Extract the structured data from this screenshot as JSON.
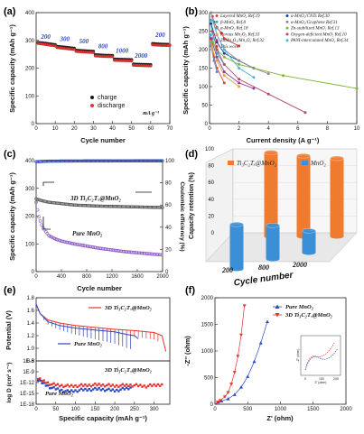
{
  "panels": {
    "a": {
      "label": "(a)",
      "xlabel": "Cycle number",
      "ylabel": "Specific capacity (mAh g⁻¹)",
      "xticks": [
        "0",
        "10",
        "20",
        "30",
        "40",
        "50",
        "60",
        "70"
      ],
      "yticks": [
        "0",
        "100",
        "200",
        "300",
        "400"
      ],
      "unit_note": "mA g⁻¹"
    },
    "b": {
      "label": "(b)",
      "xlabel": "Current density (A g⁻¹)",
      "ylabel": "Specific capacity (mAh g⁻¹)",
      "xticks": [
        "0",
        "2",
        "4",
        "6",
        "8",
        "10"
      ],
      "yticks": [
        "0",
        "50",
        "100",
        "150",
        "200",
        "250",
        "300"
      ]
    },
    "c": {
      "label": "(c)",
      "xlabel": "Cycle number",
      "ylabel": "Specific capacity (mAh g⁻¹)",
      "ylabel_right": "Coulombic efficiency (%)",
      "xticks": [
        "0",
        "400",
        "800",
        "1200",
        "1600",
        "2000"
      ],
      "yticks": [
        "0",
        "100",
        "200",
        "300",
        "400"
      ],
      "yticks_right": [
        "0",
        "20",
        "40",
        "60",
        "80",
        "100"
      ],
      "annotations": [
        "3D Ti₃C₂Tₓ@MnO₂",
        "Pure MnO₂"
      ]
    },
    "d": {
      "label": "(d)",
      "ylabel": "Capacity retention (%)",
      "xlabel": "Cycle number",
      "yticks": [
        "0",
        "20",
        "40",
        "60",
        "80",
        "100"
      ],
      "legend": [
        "Ti₃C₂Tₓ@MnO₂",
        "MnO₂"
      ]
    },
    "e": {
      "label": "(e)",
      "xlabel": "Specific capacity (mAh g⁻¹)",
      "ylabel_top": "Potential (V)",
      "ylabel_bottom": "log D (cm² s⁻¹)",
      "xticks": [
        "0",
        "50",
        "100",
        "150",
        "200",
        "250",
        "300"
      ],
      "yticks_top": [
        "0.8",
        "1.0",
        "1.2",
        "1.4",
        "1.6",
        "1.8"
      ],
      "yticks_bottom": [
        "1E-18",
        "1E-15",
        "1E-12",
        "1E-9",
        "1E-6"
      ],
      "legend": [
        "3D Ti₃C₂Tₓ@MnO₂",
        "Pure MnO₂"
      ],
      "note_bottom": [
        "3D Ti₃C₂Tₓ@MnO₂",
        "Pure MnO₂"
      ]
    },
    "f": {
      "label": "(f)",
      "xlabel": "Z' (ohm)",
      "ylabel": "-Z'' (ohm)",
      "xticks": [
        "0",
        "500",
        "1000",
        "1500",
        "2000"
      ],
      "yticks": [
        "0",
        "500",
        "1000",
        "1500",
        "2000"
      ],
      "legend": [
        "Pure MnO₂",
        "3D Ti₃C₂Tₓ@MnO₂"
      ],
      "inset_xlabel": "Z' (ohm)",
      "inset_ylabel": "-Z'' (ohm)",
      "inset_ticks": [
        "0",
        "100",
        "200"
      ]
    }
  },
  "colors": {
    "red": "#e8322e",
    "blue": "#2b48c4",
    "purple": "#8d59c9",
    "orange": "#ef7b2f",
    "bluebar": "#3a8fd6"
  },
  "chart_data": [
    {
      "panel": "a",
      "type": "scatter",
      "xlabel": "Cycle number",
      "ylabel": "Specific capacity (mAh g⁻¹)",
      "xlim": [
        0,
        70
      ],
      "ylim": [
        0,
        400
      ],
      "series": [
        {
          "name": "charge",
          "points": [
            [
              1,
              290
            ],
            [
              5,
              287
            ],
            [
              10,
              282
            ],
            [
              11,
              276
            ],
            [
              15,
              273
            ],
            [
              20,
              269
            ],
            [
              21,
              262
            ],
            [
              25,
              260
            ],
            [
              30,
              258
            ],
            [
              31,
              246
            ],
            [
              35,
              244
            ],
            [
              40,
              243
            ],
            [
              41,
              230
            ],
            [
              45,
              229
            ],
            [
              50,
              228
            ],
            [
              51,
              212
            ],
            [
              55,
              211
            ],
            [
              60,
              210
            ],
            [
              61,
              286
            ],
            [
              65,
              284
            ],
            [
              70,
              283
            ]
          ]
        },
        {
          "name": "discharge",
          "points": [
            [
              1,
              292
            ],
            [
              5,
              288
            ],
            [
              10,
              283
            ],
            [
              11,
              277
            ],
            [
              15,
              274
            ],
            [
              20,
              270
            ],
            [
              21,
              263
            ],
            [
              25,
              261
            ],
            [
              30,
              259
            ],
            [
              31,
              247
            ],
            [
              35,
              245
            ],
            [
              40,
              244
            ],
            [
              41,
              231
            ],
            [
              45,
              230
            ],
            [
              50,
              229
            ],
            [
              51,
              213
            ],
            [
              55,
              212
            ],
            [
              60,
              211
            ],
            [
              61,
              287
            ],
            [
              65,
              285
            ],
            [
              70,
              284
            ]
          ]
        }
      ],
      "labels": [
        {
          "x": 5,
          "y": 305,
          "text": "200"
        },
        {
          "x": 15,
          "y": 297,
          "text": "300"
        },
        {
          "x": 25,
          "y": 289,
          "text": "500"
        },
        {
          "x": 35,
          "y": 272,
          "text": "800"
        },
        {
          "x": 45,
          "y": 255,
          "text": "1000"
        },
        {
          "x": 55,
          "y": 237,
          "text": "2000"
        },
        {
          "x": 65,
          "y": 312,
          "text": "200"
        }
      ]
    },
    {
      "panel": "b",
      "type": "line",
      "xlabel": "Current density (A g⁻¹)",
      "ylabel": "Specific capacity (mAh g⁻¹)",
      "xlim": [
        0,
        10
      ],
      "ylim": [
        0,
        300
      ],
      "series": [
        {
          "name": "Layered MnO₂ Ref.19",
          "color": "#d9483b",
          "x": [
            0.1,
            0.3,
            0.5,
            1
          ],
          "y": [
            230,
            180,
            150,
            110
          ]
        },
        {
          "name": "β-MnO₂ Ref.8",
          "color": "#2bb0b8",
          "x": [
            0.1,
            0.2,
            0.5,
            1
          ],
          "y": [
            280,
            230,
            190,
            160
          ]
        },
        {
          "name": "α-MnO₂ Ref.18",
          "color": "#5a8fd8",
          "x": [
            0.05,
            0.1,
            0.3,
            0.5
          ],
          "y": [
            240,
            210,
            170,
            140
          ]
        },
        {
          "name": "Porous Mn₂O₃ Ref.33",
          "color": "#e9a43a",
          "x": [
            0.1,
            0.2,
            0.5,
            1,
            2
          ],
          "y": [
            225,
            200,
            170,
            130,
            100
          ]
        },
        {
          "name": "ZnMn₂O₄/Mn₂O₃ Ref.32",
          "color": "#8e3b9e",
          "x": [
            0.1,
            0.5,
            1,
            2,
            3
          ],
          "y": [
            230,
            180,
            140,
            110,
            95
          ]
        },
        {
          "name": "This work",
          "color": "#e8322e",
          "x": [
            0.2,
            0.3,
            0.5,
            0.8,
            1,
            2
          ],
          "y": [
            290,
            275,
            260,
            245,
            230,
            210
          ]
        },
        {
          "name": "α-MnO₂/CNTs Ref.30",
          "color": "#1c3f94",
          "x": [
            0.1,
            0.5,
            1,
            2,
            3
          ],
          "y": [
            270,
            220,
            190,
            170,
            150
          ]
        },
        {
          "name": "α-MnO₂/Graphene Ref.31",
          "color": "#8a8a8a",
          "x": [
            0.1,
            0.5,
            1,
            2,
            3,
            4
          ],
          "y": [
            300,
            240,
            200,
            170,
            150,
            135
          ]
        },
        {
          "name": "Zn-stabilized MnO₂ Ref.13",
          "color": "#7fb339",
          "x": [
            0.2,
            0.5,
            1,
            2,
            5,
            10
          ],
          "y": [
            220,
            200,
            180,
            160,
            130,
            95
          ]
        },
        {
          "name": "Oxygen-deficient MnO₂ Ref.10",
          "color": "#b04a64",
          "x": [
            0.2,
            0.5,
            1,
            2,
            4,
            6.5
          ],
          "y": [
            250,
            200,
            160,
            120,
            80,
            30
          ]
        },
        {
          "name": "PANI-intercalated MnO₂ Ref.34",
          "color": "#4fb0d8",
          "x": [
            0.2,
            0.5,
            1,
            2,
            3
          ],
          "y": [
            280,
            240,
            200,
            150,
            125
          ]
        }
      ]
    },
    {
      "panel": "c",
      "type": "scatter",
      "xlabel": "Cycle number",
      "ylabel": "Specific capacity (mAh g⁻¹)",
      "ylabel_right": "Coulombic efficiency (%)",
      "xlim": [
        0,
        2000
      ],
      "ylim": [
        0,
        400
      ],
      "ylim_right": [
        0,
        100
      ],
      "series": [
        {
          "name": "3D Ti₃C₂Tₓ@MnO₂ capacity",
          "x": [
            0,
            100,
            200,
            400,
            600,
            800,
            1000,
            1200,
            1400,
            1600,
            1800,
            2000
          ],
          "y": [
            262,
            255,
            250,
            245,
            240,
            238,
            236,
            235,
            234,
            233,
            232,
            231
          ]
        },
        {
          "name": "Pure MnO₂ capacity",
          "x": [
            0,
            40,
            100,
            200,
            300,
            400,
            600,
            800,
            1000,
            1200,
            1400,
            1600,
            1800,
            2000
          ],
          "y": [
            250,
            200,
            160,
            130,
            118,
            110,
            100,
            92,
            84,
            78,
            72,
            68,
            64,
            60
          ]
        },
        {
          "name": "Coulombic efficiency",
          "x": [
            0,
            200,
            400,
            800,
            1200,
            1600,
            2000
          ],
          "y": [
            99,
            99.5,
            99.6,
            99.7,
            99.7,
            99.8,
            99.8
          ]
        }
      ]
    },
    {
      "panel": "d",
      "type": "bar",
      "xlabel": "Cycle number",
      "ylabel": "Capacity retention (%)",
      "categories": [
        "200",
        "800",
        "2000"
      ],
      "ylim": [
        0,
        100
      ],
      "series": [
        {
          "name": "Ti₃C₂Tₓ@MnO₂",
          "values": [
            100,
            96,
            93
          ]
        },
        {
          "name": "MnO₂",
          "values": [
            53,
            40,
            26
          ]
        }
      ]
    },
    {
      "panel": "e",
      "type": "line",
      "xlabel": "Specific capacity (mAh g⁻¹)",
      "ylabel": "Potential (V)",
      "xlim": [
        0,
        340
      ],
      "ylim": [
        0.8,
        1.8
      ],
      "series": [
        {
          "name": "3D Ti₃C₂Tₓ@MnO₂",
          "x": [
            0,
            10,
            30,
            60,
            100,
            150,
            200,
            250,
            300,
            320,
            330
          ],
          "y": [
            1.7,
            1.55,
            1.45,
            1.4,
            1.36,
            1.33,
            1.3,
            1.28,
            1.25,
            1.2,
            0.95
          ]
        },
        {
          "name": "Pure MnO₂",
          "x": [
            0,
            10,
            30,
            60,
            100,
            150,
            200,
            230,
            250,
            260
          ],
          "y": [
            1.7,
            1.55,
            1.42,
            1.36,
            1.32,
            1.29,
            1.26,
            1.22,
            1.2,
            1.15
          ]
        }
      ],
      "diffusion": {
        "ylim_log": [
          -18,
          -6
        ],
        "series": [
          {
            "name": "3D Ti₃C₂Tₓ@MnO₂",
            "x": [
              5,
              40,
              80,
              120,
              160,
              200,
              240,
              280,
              320
            ],
            "y": [
              -11,
              -12.5,
              -13,
              -12.8,
              -12.6,
              -12.9,
              -12.7,
              -13,
              -12.5
            ]
          },
          {
            "name": "Pure MnO₂",
            "x": [
              5,
              40,
              80,
              120,
              160,
              200,
              240
            ],
            "y": [
              -11.5,
              -13.5,
              -14.5,
              -14,
              -13.8,
              -14.2,
              -13.5
            ]
          }
        ]
      }
    },
    {
      "panel": "f",
      "type": "scatter",
      "xlabel": "Z' (ohm)",
      "ylabel": "-Z'' (ohm)",
      "xlim": [
        0,
        2000
      ],
      "ylim": [
        0,
        2000
      ],
      "series": [
        {
          "name": "Pure MnO₂",
          "x": [
            0,
            50,
            100,
            200,
            300,
            400,
            500,
            600,
            700,
            800
          ],
          "y": [
            0,
            40,
            60,
            100,
            180,
            320,
            520,
            800,
            1150,
            1550
          ]
        },
        {
          "name": "3D Ti₃C₂Tₓ@MnO₂",
          "x": [
            0,
            40,
            80,
            150,
            200,
            250,
            300,
            350,
            400,
            450
          ],
          "y": [
            0,
            40,
            70,
            140,
            220,
            380,
            600,
            900,
            1300,
            1850
          ]
        }
      ]
    }
  ]
}
